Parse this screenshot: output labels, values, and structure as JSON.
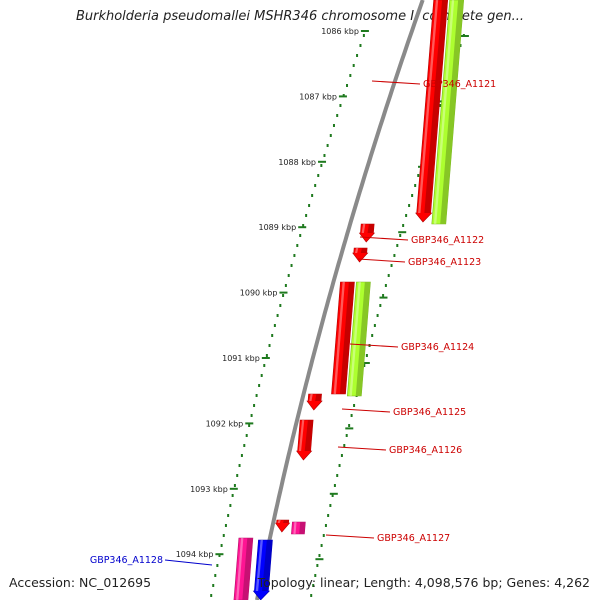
{
  "title": "Burkholderia pseudomallei MSHR346 chromosome I, complete gen...",
  "accession_text": "Accession: NC_012695",
  "summary_text": "Topology: linear; Length: 4,098,576 bp; Genes: 4,262",
  "colors": {
    "background": "#ffffff",
    "backbone": "#8a8a8a",
    "tick": "#1f7a1f",
    "forward_gene": "#ff0000",
    "reverse_gene": "#adff2f",
    "pseudo_gene": "#ff1493",
    "selected_gene": "#0000ff",
    "label_red": "#cc0000",
    "label_blue": "#0000cc"
  },
  "ticks": [
    "1086 kbp",
    "1087 kbp",
    "1088 kbp",
    "1089 kbp",
    "1090 kbp",
    "1091 kbp",
    "1092 kbp",
    "1093 kbp",
    "1094 kbp"
  ],
  "genes": [
    {
      "label": "GBP346_A1121",
      "label_color": "red"
    },
    {
      "label": "GBP346_A1122",
      "label_color": "red"
    },
    {
      "label": "GBP346_A1123",
      "label_color": "red"
    },
    {
      "label": "GBP346_A1124",
      "label_color": "red"
    },
    {
      "label": "GBP346_A1125",
      "label_color": "red"
    },
    {
      "label": "GBP346_A1126",
      "label_color": "red"
    },
    {
      "label": "GBP346_A1127",
      "label_color": "red"
    },
    {
      "label": "GBP346_A1128",
      "label_color": "blue"
    }
  ]
}
